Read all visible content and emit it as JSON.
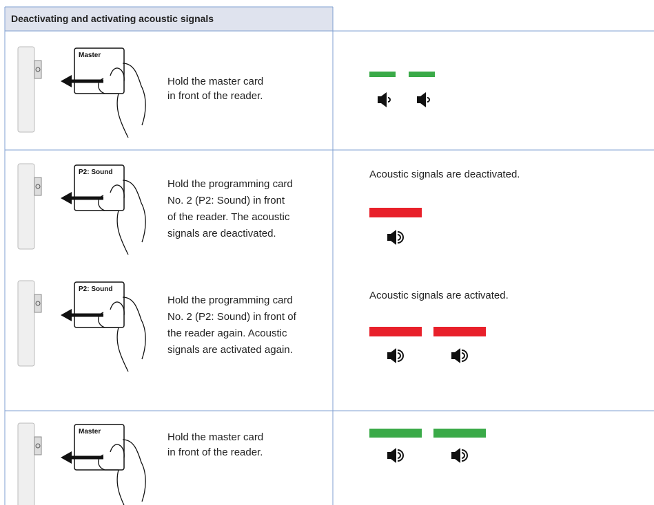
{
  "header": {
    "title": "Deactivating and activating acoustic signals"
  },
  "rows": [
    {
      "card_label": "Master",
      "instruction": [
        "Hold the master card",
        "in front of the reader."
      ]
    },
    {
      "card_label": "P2: Sound",
      "instruction": [
        "Hold the programming card",
        "No. 2 (P2: Sound) in front",
        "of the reader. The acoustic",
        "signals are deactivated."
      ],
      "result": "Acoustic signals are deactivated."
    },
    {
      "card_label": "P2: Sound",
      "instruction": [
        "Hold the programming card",
        "No. 2 (P2: Sound) in front of",
        "the reader again. Acoustic",
        "signals are activated again."
      ],
      "result": "Acoustic signals are activated."
    },
    {
      "card_label": "Master",
      "instruction": [
        "Hold the master card",
        "in front of the reader."
      ]
    }
  ]
}
